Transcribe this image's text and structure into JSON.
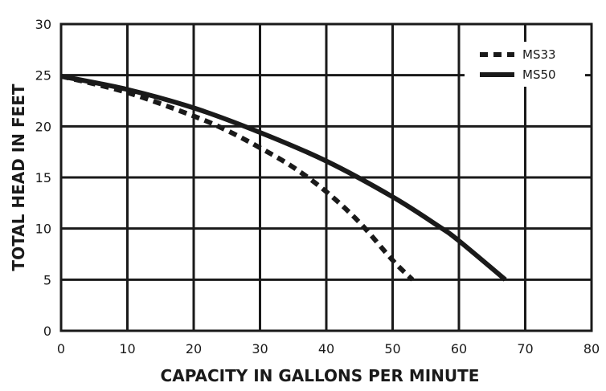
{
  "chart_data": {
    "type": "line",
    "title": "",
    "xlabel": "CAPACITY IN GALLONS PER MINUTE",
    "ylabel": "TOTAL HEAD IN FEET",
    "xlim": [
      0,
      80
    ],
    "ylim": [
      0,
      30
    ],
    "x_ticks": [
      0,
      10,
      20,
      30,
      40,
      50,
      60,
      70,
      80
    ],
    "y_ticks": [
      0,
      5,
      10,
      15,
      20,
      25,
      30
    ],
    "grid": true,
    "legend_position": "top-right",
    "series": [
      {
        "name": "MS33",
        "style": "dashed",
        "color": "#1a1a1a",
        "points": [
          [
            0,
            24.9
          ],
          [
            10,
            23.3
          ],
          [
            20,
            21.0
          ],
          [
            25,
            19.6
          ],
          [
            30,
            17.9
          ],
          [
            35,
            16.0
          ],
          [
            40,
            13.6
          ],
          [
            45,
            10.6
          ],
          [
            50,
            6.9
          ],
          [
            53,
            5.0
          ]
        ]
      },
      {
        "name": "MS50",
        "style": "solid",
        "color": "#1a1a1a",
        "points": [
          [
            0,
            24.9
          ],
          [
            10,
            23.6
          ],
          [
            20,
            21.8
          ],
          [
            30,
            19.4
          ],
          [
            40,
            16.6
          ],
          [
            50,
            13.1
          ],
          [
            57,
            10.2
          ],
          [
            60,
            8.8
          ],
          [
            67,
            5.0
          ]
        ]
      }
    ]
  }
}
